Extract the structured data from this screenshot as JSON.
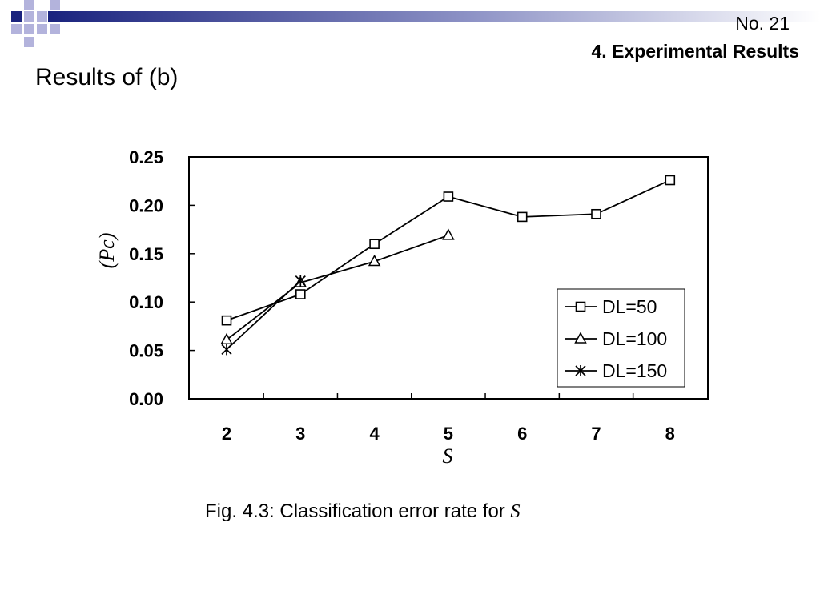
{
  "header": {
    "slide_number": "No. 21",
    "section": "4. Experimental Results"
  },
  "slide_title": "Results of (b)",
  "caption": {
    "prefix": "Fig. 4.3: Classification error rate for ",
    "variable": "S"
  },
  "colors": {
    "banner_dark": "#1a237e",
    "banner_light": "#b3b3dc",
    "line": "#000000",
    "background": "#ffffff"
  },
  "chart_data": {
    "type": "line",
    "title": "",
    "xlabel": "S",
    "ylabel": "(Pc)",
    "categories": [
      "2",
      "3",
      "4",
      "5",
      "6",
      "7",
      "8"
    ],
    "ylim": [
      0,
      0.25
    ],
    "yticks": [
      "0.00",
      "0.05",
      "0.10",
      "0.15",
      "0.20",
      "0.25"
    ],
    "grid": false,
    "legend_position": "bottom-right",
    "series": [
      {
        "name": "DL=50",
        "marker": "square",
        "x": [
          2,
          3,
          4,
          5,
          6,
          7,
          8
        ],
        "values": [
          0.081,
          0.108,
          0.16,
          0.209,
          0.188,
          0.191,
          0.226
        ]
      },
      {
        "name": "DL=100",
        "marker": "triangle",
        "x": [
          2,
          3,
          4,
          5
        ],
        "values": [
          0.061,
          0.12,
          0.142,
          0.169
        ]
      },
      {
        "name": "DL=150",
        "marker": "star",
        "x": [
          2,
          3
        ],
        "values": [
          0.051,
          0.122
        ]
      }
    ]
  }
}
